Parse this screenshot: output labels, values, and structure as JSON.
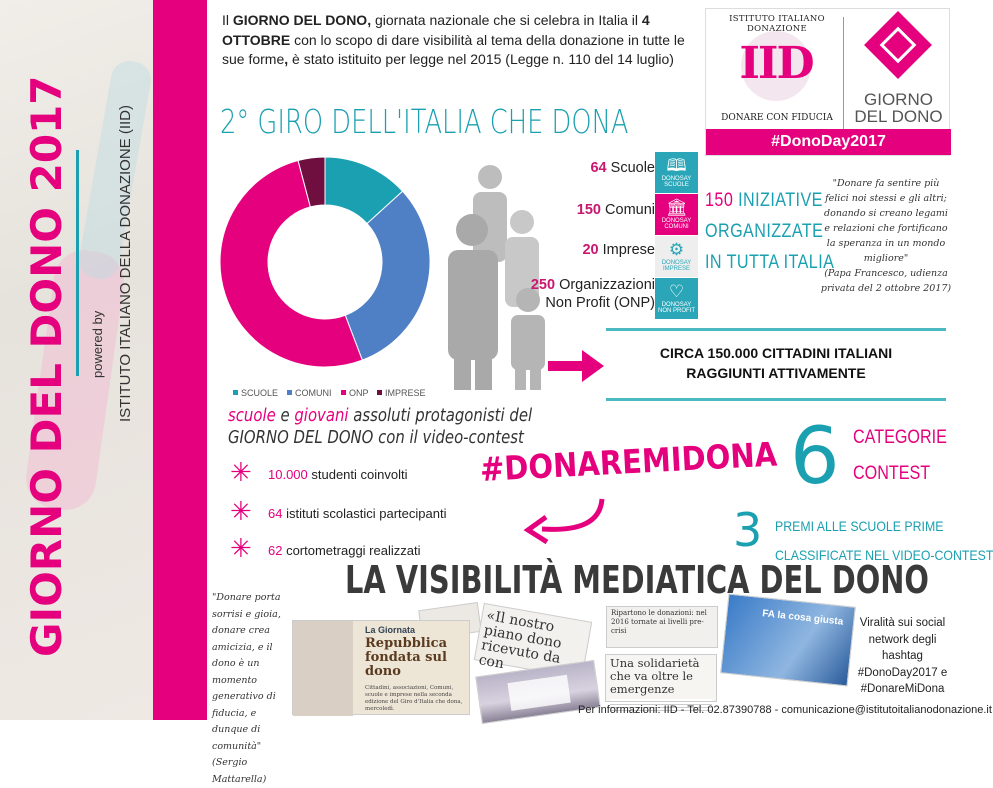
{
  "side": {
    "title": "GIORNO DEL DONO 2017",
    "powered_by": "powered by",
    "org": "ISTITUTO ITALIANO DELLA DONAZIONE (IID)"
  },
  "intro": {
    "p1": "Il ",
    "b1": "GIORNO DEL DONO,",
    "p2": " giornata nazionale che si celebra in Italia il ",
    "b2": "4 OTTOBRE",
    "p3": " con lo scopo di dare visibilità al tema della donazione in tutte le sue forme",
    "b3": ",",
    "p4": " è stato istituito per legge nel 2015 (Legge n. 110 del 14 luglio)"
  },
  "logo": {
    "iid_arc": "ISTITUTO ITALIANO DONAZIONE",
    "iid_mark": "IID",
    "iid_tagline": "DONARE CON FIDUCIA",
    "gdd_line1": "GIORNO",
    "gdd_line2": "DEL DONO",
    "hashtag": "#DonoDay2017"
  },
  "title": "2° GIRO DELL'ITALIA CHE DONA",
  "chart_data": {
    "type": "pie",
    "donut": true,
    "categories": [
      "SCUOLE",
      "COMUNI",
      "ONP",
      "IMPRESE"
    ],
    "values": [
      64,
      150,
      250,
      20
    ],
    "colors": [
      "#1aa0b0",
      "#4f7fc4",
      "#e5007e",
      "#6e0f40"
    ],
    "legend": "bottom"
  },
  "stats": [
    {
      "num": "64",
      "label": "Scuole"
    },
    {
      "num": "150",
      "label": "Comuni"
    },
    {
      "num": "20",
      "label": "Imprese"
    },
    {
      "num": "250",
      "label": "Organizzazioni",
      "label2": "Non Profit (ONP)"
    }
  ],
  "icon_boxes": [
    {
      "icon": "book-icon",
      "line1": "DONOSAY",
      "line2": "SCUOLE",
      "color": "#2aa6b8"
    },
    {
      "icon": "town-hall-icon",
      "line1": "DONOSAY",
      "line2": "COMUNI",
      "color": "#e5007e"
    },
    {
      "icon": "gears-icon",
      "line1": "DONOSAY",
      "line2": "IMPRESE",
      "color": "#eeeeee"
    },
    {
      "icon": "heart-icon",
      "line1": "DONOSAY",
      "line2": "NON PROFIT",
      "color": "#2aa6b8"
    }
  ],
  "initiatives": {
    "num": "150",
    "l1": " INIZIATIVE",
    "l2": "ORGANIZZATE",
    "l3": "IN TUTTA ITALIA"
  },
  "quote_pope": {
    "text": "\"Donare fa sentire più felici noi stessi e gli altri; donando si creano legami e relazioni che fortificano la speranza in un mondo migliore\"",
    "author": "(Papa Francesco, udienza privata del 2 ottobre 2017)"
  },
  "citizens": {
    "l1": "CIRCA 150.000 CITTADINI ITALIANI",
    "l2": "RAGGIUNTI ATTIVAMENTE"
  },
  "video": {
    "w1": "scuole",
    "w2": " e ",
    "w3": "giovani",
    "w4": " assoluti protagonisti del",
    "l2": "GIORNO DEL DONO con il video-contest"
  },
  "bullets": [
    {
      "num": "10.000",
      "text": " studenti coinvolti"
    },
    {
      "num": "64",
      "text": " istituti scolastici partecipanti"
    },
    {
      "num": "62",
      "text": " cortometraggi realizzati"
    }
  ],
  "hashtag": "#DONAREMIDONA",
  "contest": {
    "num": "6",
    "l1": "CATEGORIE",
    "l2": "CONTEST"
  },
  "prizes": {
    "num": "3",
    "l1": "PREMI ALLE SCUOLE PRIME",
    "l2": "CLASSIFICATE NEL VIDEO-CONTEST"
  },
  "media_title": "LA VISIBILITÀ MEDIATICA DEL DONO",
  "quote_mattarella": {
    "text": "\"Donare porta sorrisi e gioia, donare crea amicizia, e il dono è un momento generativo di fiducia, e dunque di comunità\"",
    "author": "(Sergio Mattarella)"
  },
  "clips": {
    "c1_tag": "La Giornata",
    "c1_head": "Repubblica fondata sul dono",
    "c1_body": "Cittadini, associazioni, Comuni, scuole e imprese nella seconda edizione del Giro d'Italia che dona, mercoledì.",
    "c2_head": "«Il nostro piano dono ricevuto da con",
    "c3_head": "Ripartono le donazioni: nel 2016 tornate ai livelli pre-crisi",
    "c4_head": "Una solidarietà che va oltre le emergenze",
    "c5_head": "FA la cosa giusta"
  },
  "viral": "Viralità sui social network degli hashtag #DonoDay2017 e #DonareMiDona",
  "footer": "Per informazioni: IID - Tel. 02.87390788 - comunicazione@istitutoitalianodonazione.it",
  "colors": {
    "pink": "#e5007e",
    "teal": "#1aa0b0",
    "blue": "#4f7fc4",
    "plum": "#6e0f40"
  }
}
